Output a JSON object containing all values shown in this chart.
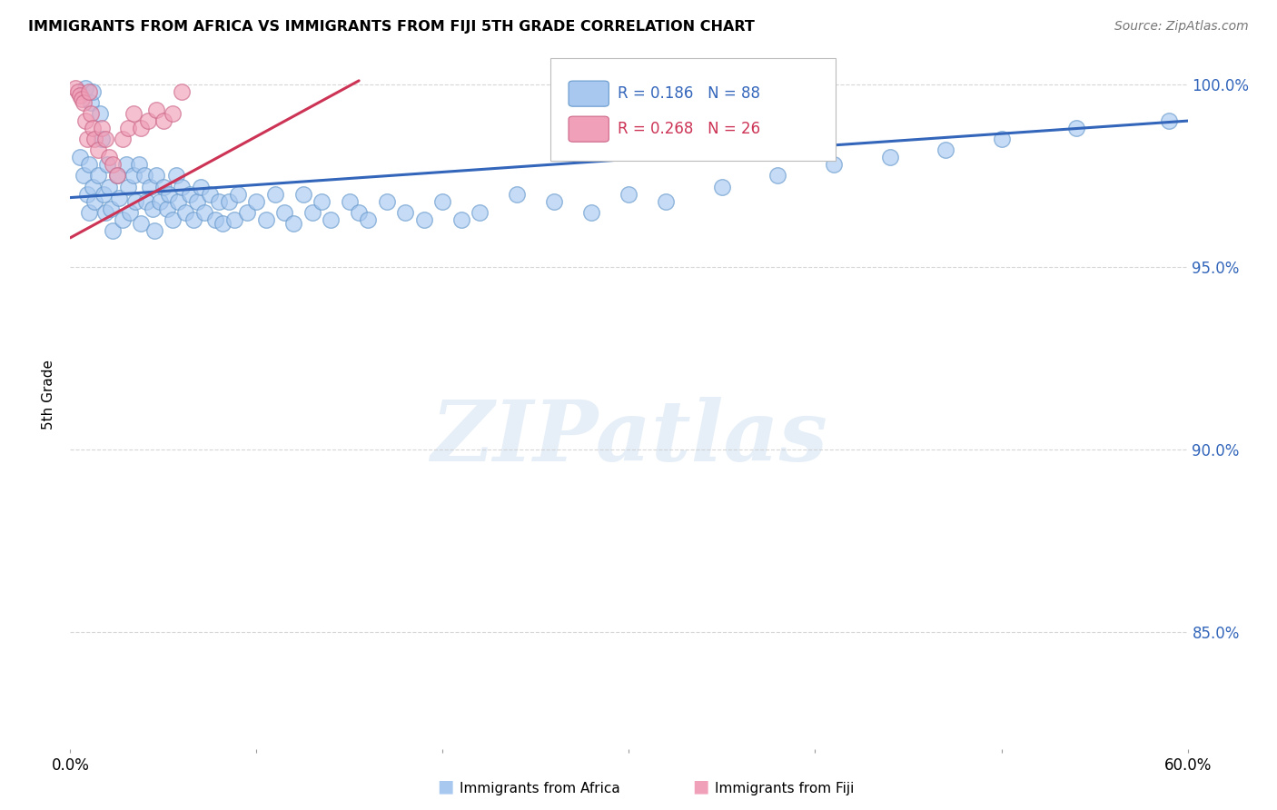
{
  "title": "IMMIGRANTS FROM AFRICA VS IMMIGRANTS FROM FIJI 5TH GRADE CORRELATION CHART",
  "source": "Source: ZipAtlas.com",
  "ylabel": "5th Grade",
  "ytick_values": [
    0.85,
    0.9,
    0.95,
    1.0
  ],
  "xlim": [
    0.0,
    0.6
  ],
  "ylim": [
    0.818,
    1.012
  ],
  "africa_color": "#A8C8F0",
  "fiji_color": "#F0A0B8",
  "africa_edge": "#6699CC",
  "fiji_edge": "#CC6688",
  "trend_africa_color": "#3366BB",
  "trend_fiji_color": "#CC3355",
  "R_africa": 0.186,
  "N_africa": 88,
  "R_fiji": 0.268,
  "N_fiji": 26,
  "legend_label_africa": "Immigrants from Africa",
  "legend_label_fiji": "Immigrants from Fiji",
  "africa_x": [
    0.005,
    0.007,
    0.008,
    0.009,
    0.01,
    0.01,
    0.011,
    0.012,
    0.012,
    0.013,
    0.015,
    0.016,
    0.017,
    0.018,
    0.019,
    0.02,
    0.021,
    0.022,
    0.023,
    0.025,
    0.026,
    0.028,
    0.03,
    0.031,
    0.032,
    0.034,
    0.035,
    0.037,
    0.038,
    0.04,
    0.041,
    0.043,
    0.044,
    0.045,
    0.046,
    0.048,
    0.05,
    0.052,
    0.053,
    0.055,
    0.057,
    0.058,
    0.06,
    0.062,
    0.064,
    0.066,
    0.068,
    0.07,
    0.072,
    0.075,
    0.078,
    0.08,
    0.082,
    0.085,
    0.088,
    0.09,
    0.095,
    0.1,
    0.105,
    0.11,
    0.115,
    0.12,
    0.125,
    0.13,
    0.135,
    0.14,
    0.15,
    0.155,
    0.16,
    0.17,
    0.18,
    0.19,
    0.2,
    0.21,
    0.22,
    0.24,
    0.26,
    0.28,
    0.3,
    0.32,
    0.35,
    0.38,
    0.41,
    0.44,
    0.47,
    0.5,
    0.54,
    0.59
  ],
  "africa_y": [
    0.98,
    0.975,
    0.999,
    0.97,
    0.978,
    0.965,
    0.995,
    0.998,
    0.972,
    0.968,
    0.975,
    0.992,
    0.985,
    0.97,
    0.965,
    0.978,
    0.972,
    0.966,
    0.96,
    0.975,
    0.969,
    0.963,
    0.978,
    0.972,
    0.965,
    0.975,
    0.968,
    0.978,
    0.962,
    0.975,
    0.968,
    0.972,
    0.966,
    0.96,
    0.975,
    0.968,
    0.972,
    0.966,
    0.97,
    0.963,
    0.975,
    0.968,
    0.972,
    0.965,
    0.97,
    0.963,
    0.968,
    0.972,
    0.965,
    0.97,
    0.963,
    0.968,
    0.962,
    0.968,
    0.963,
    0.97,
    0.965,
    0.968,
    0.963,
    0.97,
    0.965,
    0.962,
    0.97,
    0.965,
    0.968,
    0.963,
    0.968,
    0.965,
    0.963,
    0.968,
    0.965,
    0.963,
    0.968,
    0.963,
    0.965,
    0.97,
    0.968,
    0.965,
    0.97,
    0.968,
    0.972,
    0.975,
    0.978,
    0.98,
    0.982,
    0.985,
    0.988,
    0.99
  ],
  "fiji_x": [
    0.003,
    0.004,
    0.005,
    0.006,
    0.007,
    0.008,
    0.009,
    0.01,
    0.011,
    0.012,
    0.013,
    0.015,
    0.017,
    0.019,
    0.021,
    0.023,
    0.025,
    0.028,
    0.031,
    0.034,
    0.038,
    0.042,
    0.046,
    0.05,
    0.055,
    0.06
  ],
  "fiji_y": [
    0.999,
    0.998,
    0.997,
    0.996,
    0.995,
    0.99,
    0.985,
    0.998,
    0.992,
    0.988,
    0.985,
    0.982,
    0.988,
    0.985,
    0.98,
    0.978,
    0.975,
    0.985,
    0.988,
    0.992,
    0.988,
    0.99,
    0.993,
    0.99,
    0.992,
    0.998
  ],
  "background_color": "#FFFFFF",
  "grid_color": "#CCCCCC",
  "watermark_text": "ZIPatlas",
  "watermark_color": "#C8DCF0",
  "watermark_alpha": 0.45
}
